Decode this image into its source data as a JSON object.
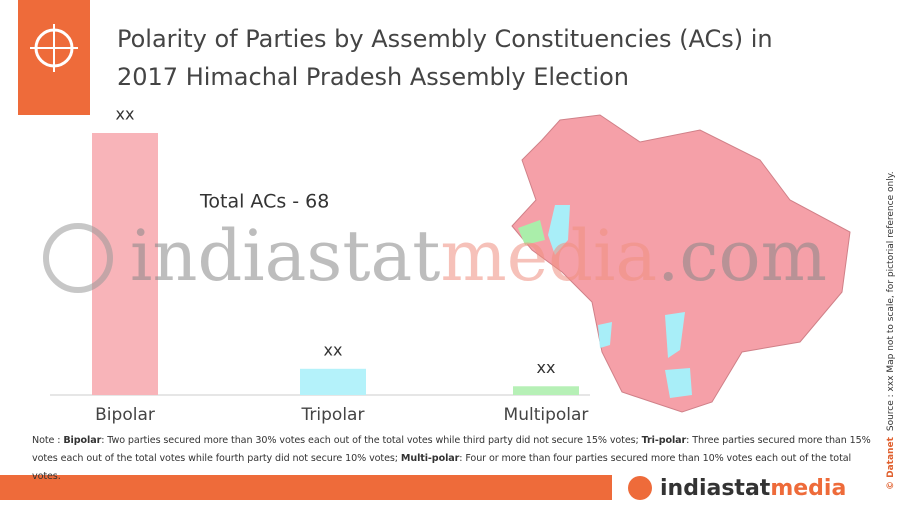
{
  "chart_data": {
    "type": "bar",
    "title": [
      "Polarity of Parties by Assembly Constituencies (ACs) in",
      "2017 Himachal Pradesh Assembly Election"
    ],
    "categories": [
      "Bipolar",
      "Tripolar",
      "Multipolar"
    ],
    "values": [
      60,
      6,
      2
    ],
    "value_labels": [
      "xx",
      "xx",
      "xx"
    ],
    "colors": [
      "#f8b4b9",
      "#b4f2fa",
      "#b6f0b6"
    ],
    "annotation": "Total ACs - 68",
    "note": [
      "Note : ",
      "Bipolar",
      ": Two parties secured more than 30% votes each out of the total votes while third party did not secure 15% votes; ",
      "Tri-polar",
      ": Three parties secured more than 15% votes each out of the total votes while fourth party did not secure 10% votes; ",
      "Multi-polar",
      ": Four or more than four parties secured more than 10% votes each out of the total votes."
    ],
    "side_note": [
      "© Datanet",
      "Source : xxx Map not to scale, for pictorial reference only."
    ],
    "watermark": [
      "indiastat",
      "media",
      ".com"
    ],
    "logo": [
      "indiastat",
      "media"
    ]
  }
}
